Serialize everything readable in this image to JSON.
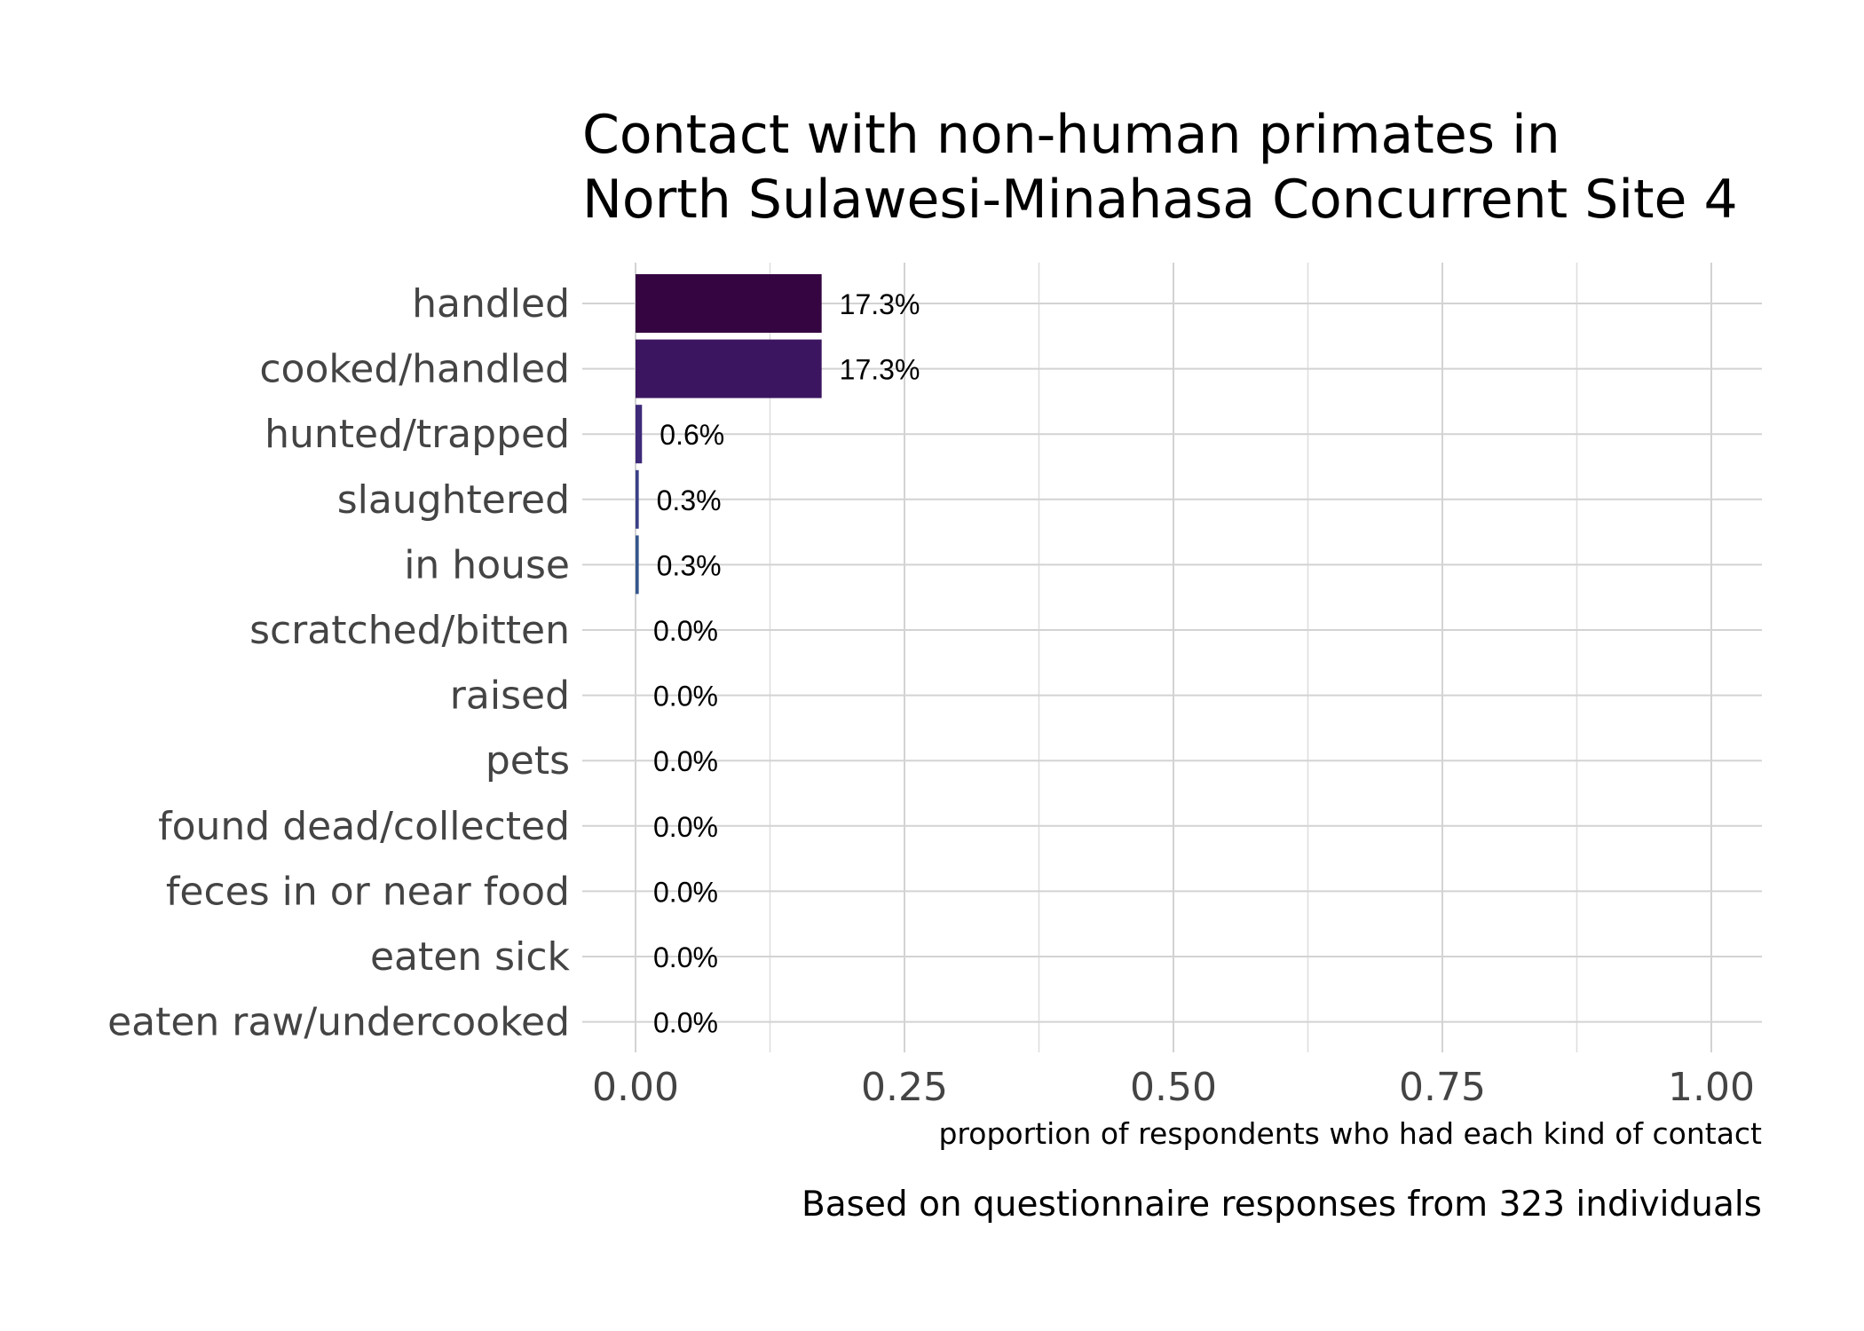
{
  "chart_data": {
    "type": "bar",
    "orientation": "horizontal",
    "title": [
      "Contact with non-human primates in",
      "North Sulawesi-Minahasa Concurrent Site 4"
    ],
    "xlabel": "proportion of respondents who had each kind of contact",
    "caption": "Based on questionnaire responses from 323 individuals",
    "xlim": [
      0,
      1.0
    ],
    "x_ticks": [
      "0.00",
      "0.25",
      "0.50",
      "0.75",
      "1.00"
    ],
    "grid": true,
    "categories": [
      "handled",
      "cooked/handled",
      "hunted/trapped",
      "slaughtered",
      "in house",
      "scratched/bitten",
      "raised",
      "pets",
      "found dead/collected",
      "feces in or near food",
      "eaten sick",
      "eaten raw/undercooked"
    ],
    "values": [
      0.173,
      0.173,
      0.006,
      0.003,
      0.003,
      0,
      0,
      0,
      0,
      0,
      0,
      0
    ],
    "value_labels": [
      "17.3%",
      "17.3%",
      "0.6%",
      "0.3%",
      "0.3%",
      "0.0%",
      "0.0%",
      "0.0%",
      "0.0%",
      "0.0%",
      "0.0%",
      "0.0%"
    ],
    "colors": [
      "#350541",
      "#3c1560",
      "#3e2a78",
      "#3a3f86",
      "#34568c",
      "#2e6b8e",
      "#297f8e",
      "#23938b",
      "#26a782",
      "#3fbb72",
      "#6dcd5a",
      "#a8db3c"
    ]
  }
}
